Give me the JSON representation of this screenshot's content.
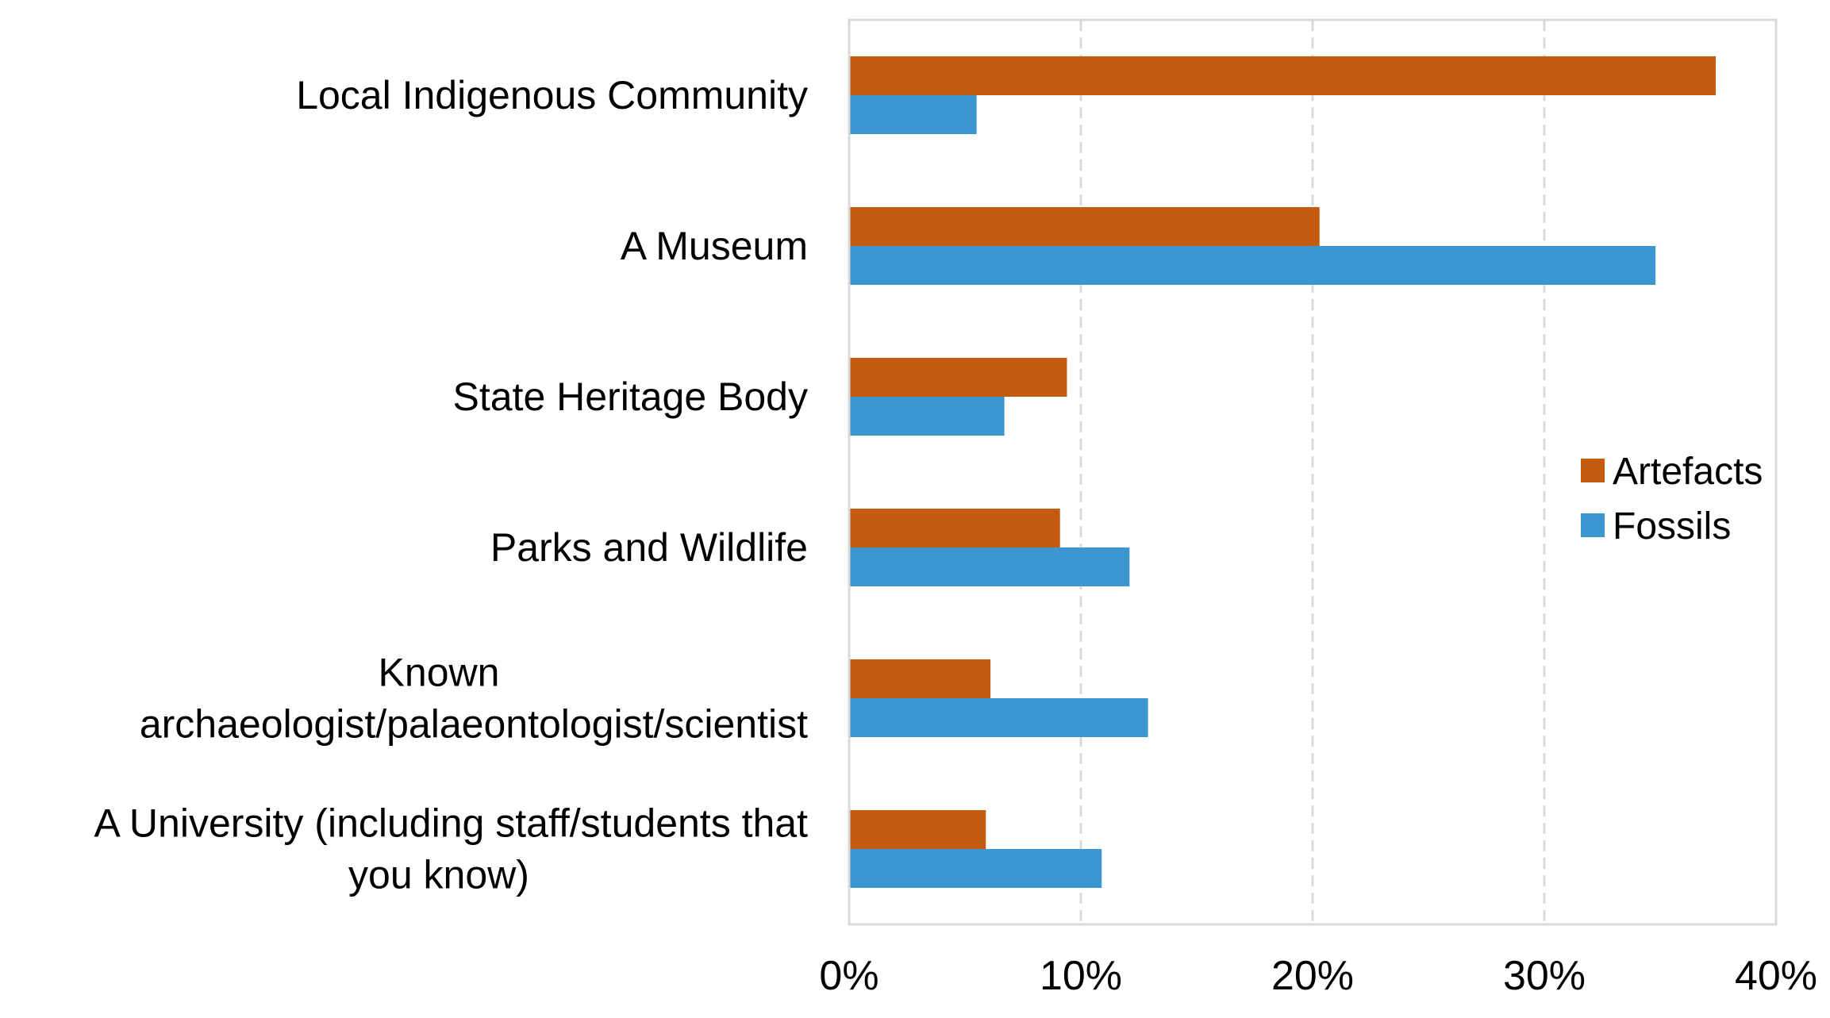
{
  "chart_data": {
    "type": "bar",
    "orientation": "horizontal",
    "categories": [
      "Local Indigenous Community",
      "A Museum",
      "State Heritage Body",
      "Parks and Wildlife",
      "Known archaeologist/palaeontologist/scientist",
      "A University (including staff/students that you know)"
    ],
    "category_lines": [
      [
        "Local Indigenous Community"
      ],
      [
        "A Museum"
      ],
      [
        "State Heritage Body"
      ],
      [
        "Parks and Wildlife"
      ],
      [
        "Known",
        "archaeologist/palaeontologist/scientist"
      ],
      [
        "A University (including staff/students that",
        "you know)"
      ]
    ],
    "series": [
      {
        "name": "Artefacts",
        "color": "#c55a11",
        "values": [
          37.4,
          20.3,
          9.4,
          9.1,
          6.1,
          5.9
        ]
      },
      {
        "name": "Fossils",
        "color": "#3c96d0",
        "values": [
          5.5,
          34.8,
          6.7,
          12.1,
          12.9,
          10.9
        ]
      }
    ],
    "x_ticks": [
      "0%",
      "10%",
      "20%",
      "30%",
      "40%"
    ],
    "xlim": [
      0,
      40
    ],
    "x_unit": "%",
    "grid": "vertical dashed",
    "legend_position": "right",
    "title": "",
    "xlabel": "",
    "ylabel": ""
  }
}
